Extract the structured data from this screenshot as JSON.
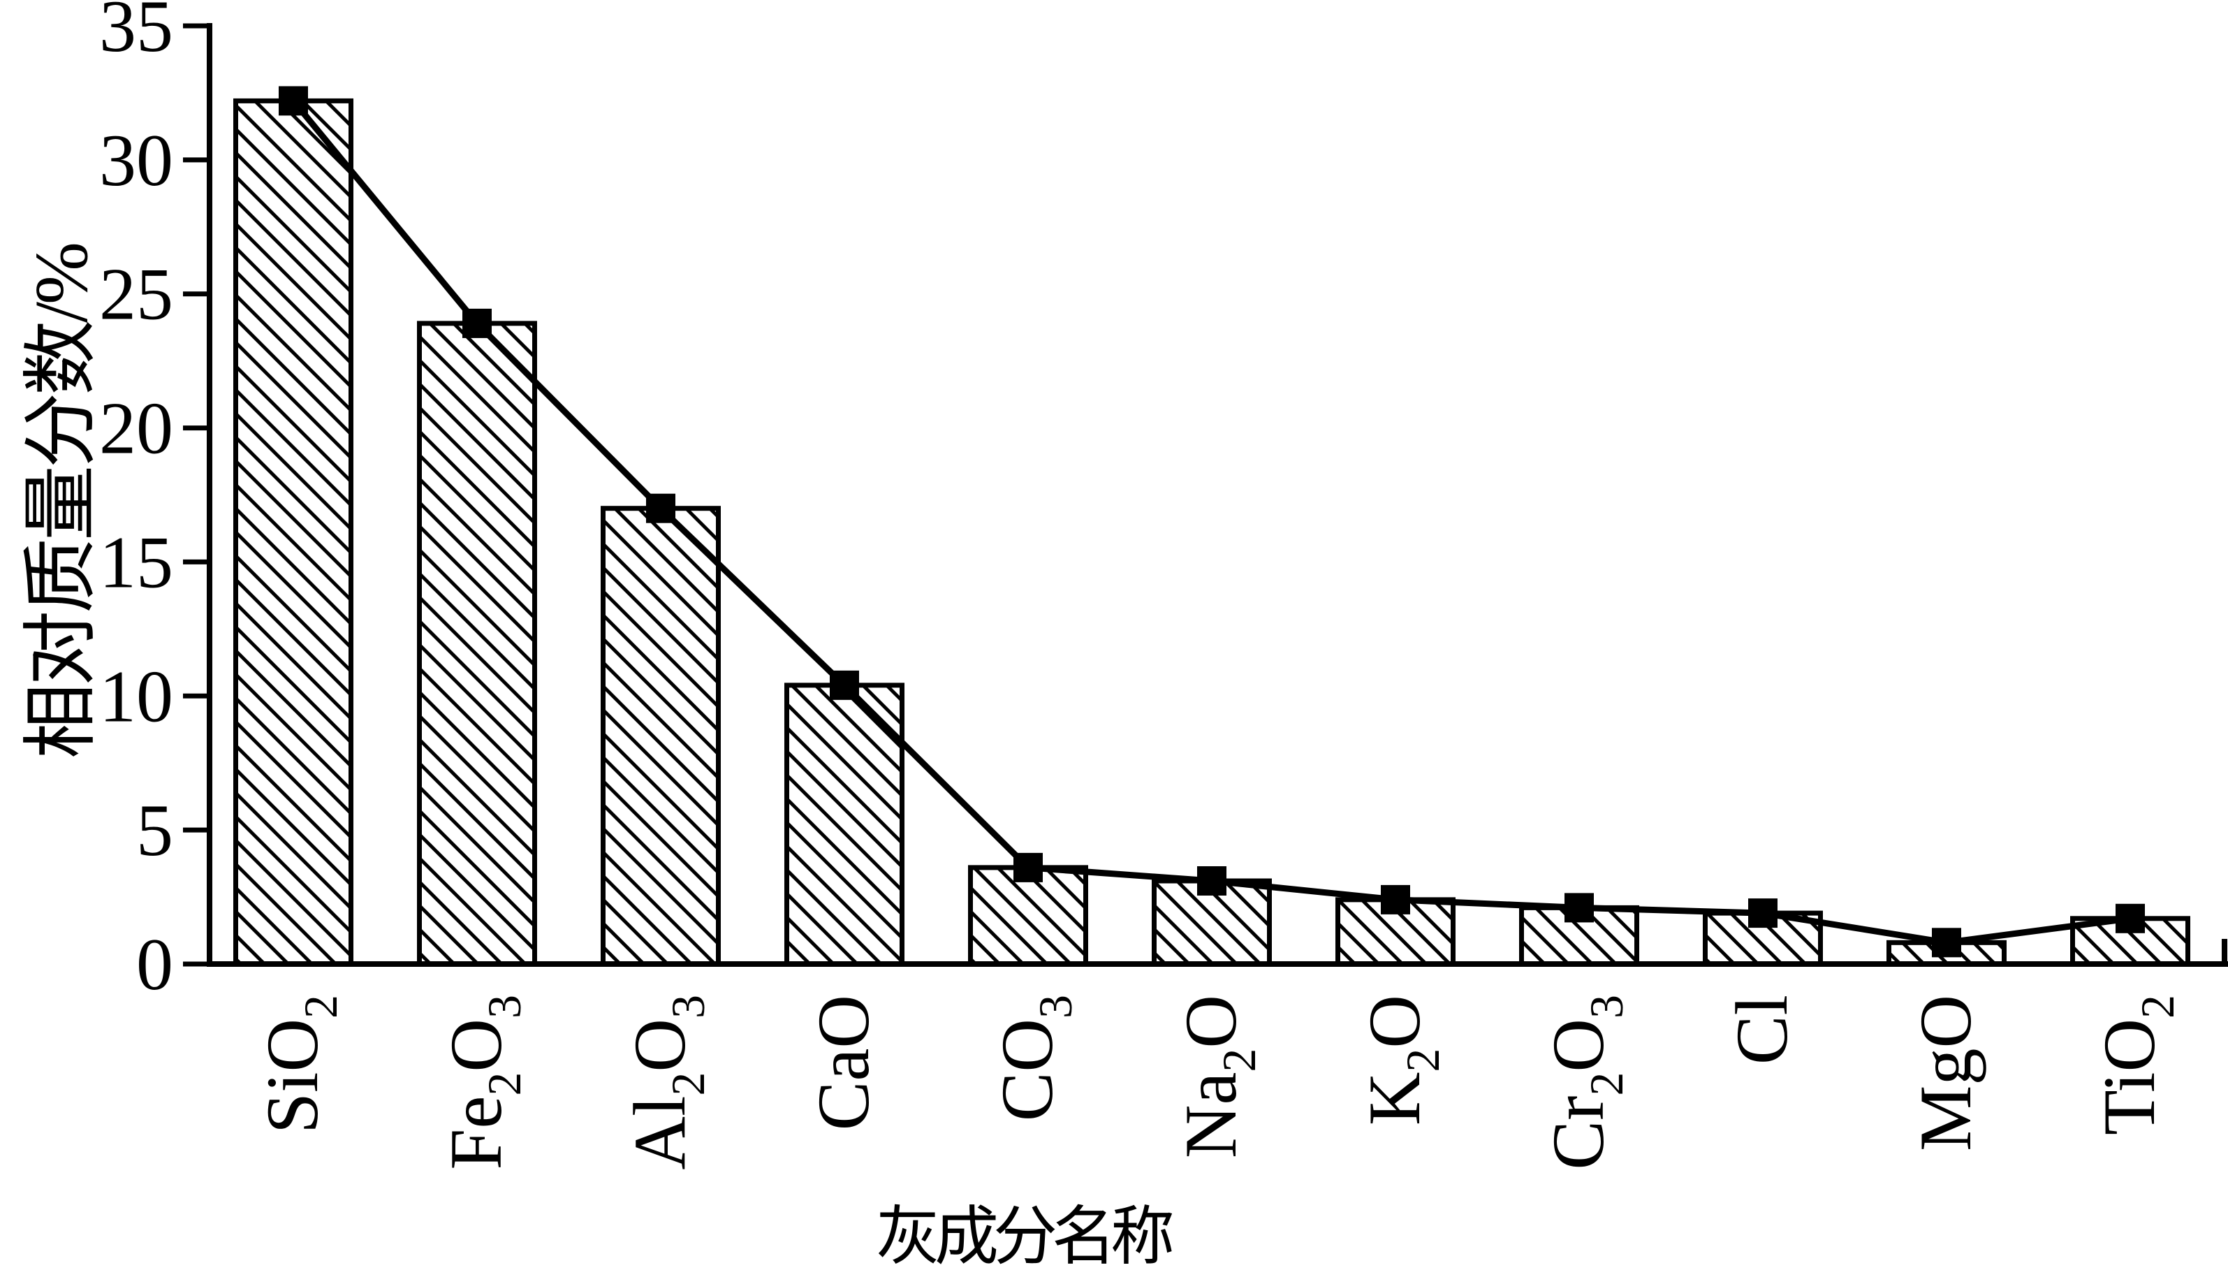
{
  "chart_data": {
    "type": "bar",
    "line_overlay": true,
    "marker": "filled-square",
    "bar_hatch": "diagonal-down",
    "title": "",
    "xlabel": "灰成分名称",
    "ylabel": "相对质量分数/%",
    "unit": "%",
    "ylim": [
      0,
      35
    ],
    "yticks": [
      0,
      5,
      10,
      15,
      20,
      25,
      30,
      35
    ],
    "grid": false,
    "legend": "none",
    "categories": [
      "SiO2",
      "Fe2O3",
      "Al2O3",
      "CaO",
      "CO3",
      "Na2O",
      "K2O",
      "Cr2O3",
      "Cl",
      "MgO",
      "TiO2"
    ],
    "categories_rich": [
      [
        [
          "t",
          "SiO"
        ],
        [
          "s",
          "2"
        ]
      ],
      [
        [
          "t",
          "Fe"
        ],
        [
          "s",
          "2"
        ],
        [
          "t",
          "O"
        ],
        [
          "s",
          "3"
        ]
      ],
      [
        [
          "t",
          "Al"
        ],
        [
          "s",
          "2"
        ],
        [
          "t",
          "O"
        ],
        [
          "s",
          "3"
        ]
      ],
      [
        [
          "t",
          "CaO"
        ]
      ],
      [
        [
          "t",
          "CO"
        ],
        [
          "s",
          "3"
        ]
      ],
      [
        [
          "t",
          "Na"
        ],
        [
          "s",
          "2"
        ],
        [
          "t",
          "O"
        ]
      ],
      [
        [
          "t",
          "K"
        ],
        [
          "s",
          "2"
        ],
        [
          "t",
          "O"
        ]
      ],
      [
        [
          "t",
          "Cr"
        ],
        [
          "s",
          "2"
        ],
        [
          "t",
          "O"
        ],
        [
          "s",
          "3"
        ]
      ],
      [
        [
          "t",
          "Cl"
        ]
      ],
      [
        [
          "t",
          "MgO"
        ]
      ],
      [
        [
          "t",
          "TiO"
        ],
        [
          "s",
          "2"
        ]
      ]
    ],
    "values": [
      32.2,
      23.9,
      17.0,
      10.4,
      3.6,
      3.1,
      2.4,
      2.1,
      1.9,
      0.8,
      1.7
    ],
    "colors": {
      "ink": "#000000",
      "background": "#ffffff"
    }
  }
}
